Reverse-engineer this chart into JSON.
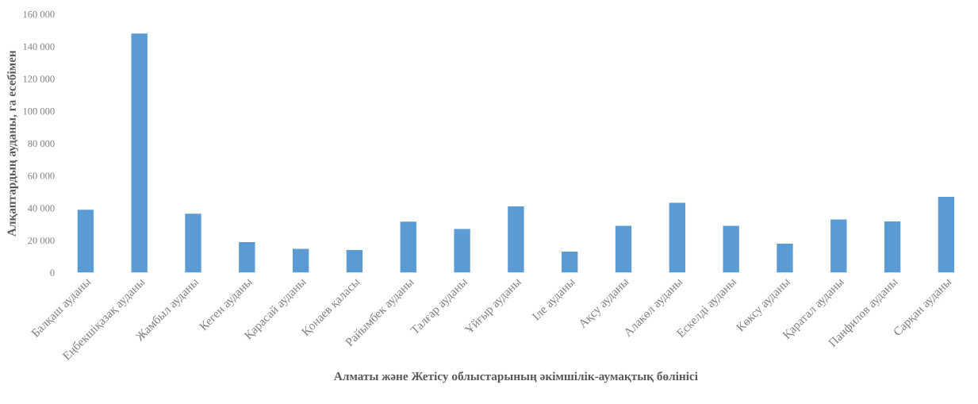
{
  "chart_data": {
    "type": "bar",
    "xlabel": "Алматы және Жетісу облыстарының әкімшілік-аумақтық бөлінісі",
    "ylabel": "Алқаптардың ауданы, га есебімен",
    "categories": [
      "Балқаш ауданы",
      "Еңбекшіқазақ ауданы",
      "Жамбыл ауданы",
      "Кеген ауданы",
      "Қарасай ауданы",
      "Қонаев қаласы",
      "Райымбек ауданы",
      "Талғар ауданы",
      "Ұйғыр ауданы",
      "Іле ауданы",
      "Ақсу ауданы",
      "Алакөл ауданы",
      "Ескелді ауданы",
      "Көксу ауданы",
      "Қаратал ауданы",
      "Панфилов ауданы",
      "Сарқан ауданы"
    ],
    "values": [
      39000,
      148000,
      36500,
      19000,
      14800,
      14000,
      31600,
      27000,
      41000,
      13000,
      29000,
      43300,
      29000,
      18000,
      33000,
      31700,
      47000
    ],
    "color": "#5b9bd5",
    "ylim": [
      0,
      160000
    ],
    "yticks": [
      {
        "value": 0,
        "label": "0"
      },
      {
        "value": 20000,
        "label": "20 000"
      },
      {
        "value": 40000,
        "label": "40 000"
      },
      {
        "value": 60000,
        "label": "60 000"
      },
      {
        "value": 80000,
        "label": "80 000"
      },
      {
        "value": 100000,
        "label": "100 000"
      },
      {
        "value": 120000,
        "label": "120 000"
      },
      {
        "value": 140000,
        "label": "140 000"
      },
      {
        "value": 160000,
        "label": "160 000"
      }
    ],
    "grid": false
  }
}
